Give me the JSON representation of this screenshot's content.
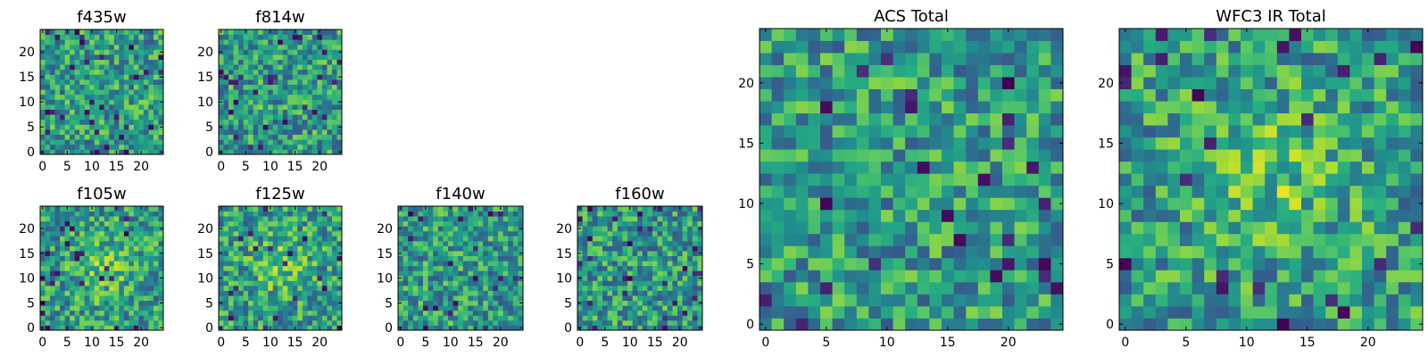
{
  "chart_data": [
    {
      "type": "heatmap",
      "title": "f435w",
      "xlabel": "",
      "ylabel": "",
      "colormap": "viridis",
      "grid_size": 25,
      "xlim": [
        -0.5,
        24.5
      ],
      "ylim": [
        -0.5,
        24.5
      ],
      "xticks": [
        0,
        5,
        10,
        15,
        20
      ],
      "yticks": [
        0,
        5,
        10,
        15,
        20
      ],
      "noise_seed": 11,
      "pattern": "uniform-noise"
    },
    {
      "type": "heatmap",
      "title": "f814w",
      "xlabel": "",
      "ylabel": "",
      "colormap": "viridis",
      "grid_size": 25,
      "xlim": [
        -0.5,
        24.5
      ],
      "ylim": [
        -0.5,
        24.5
      ],
      "xticks": [
        0,
        5,
        10,
        15,
        20
      ],
      "yticks": [
        0,
        5,
        10,
        15,
        20
      ],
      "noise_seed": 23,
      "pattern": "uniform-noise"
    },
    {
      "type": "heatmap",
      "title": "f105w",
      "xlabel": "",
      "ylabel": "",
      "colormap": "viridis",
      "grid_size": 25,
      "xlim": [
        -0.5,
        24.5
      ],
      "ylim": [
        -0.5,
        24.5
      ],
      "xticks": [
        0,
        5,
        10,
        15,
        20
      ],
      "yticks": [
        0,
        5,
        10,
        15,
        20
      ],
      "noise_seed": 37,
      "pattern": "central-bright"
    },
    {
      "type": "heatmap",
      "title": "f125w",
      "xlabel": "",
      "ylabel": "",
      "colormap": "viridis",
      "grid_size": 25,
      "xlim": [
        -0.5,
        24.5
      ],
      "ylim": [
        -0.5,
        24.5
      ],
      "xticks": [
        0,
        5,
        10,
        15,
        20
      ],
      "yticks": [
        0,
        5,
        10,
        15,
        20
      ],
      "noise_seed": 41,
      "pattern": "central-bright"
    },
    {
      "type": "heatmap",
      "title": "f140w",
      "xlabel": "",
      "ylabel": "",
      "colormap": "viridis",
      "grid_size": 25,
      "xlim": [
        -0.5,
        24.5
      ],
      "ylim": [
        -0.5,
        24.5
      ],
      "xticks": [
        0,
        5,
        10,
        15,
        20
      ],
      "yticks": [
        0,
        5,
        10,
        15,
        20
      ],
      "noise_seed": 53,
      "pattern": "uniform-noise"
    },
    {
      "type": "heatmap",
      "title": "f160w",
      "xlabel": "",
      "ylabel": "",
      "colormap": "viridis",
      "grid_size": 25,
      "xlim": [
        -0.5,
        24.5
      ],
      "ylim": [
        -0.5,
        24.5
      ],
      "xticks": [
        0,
        5,
        10,
        15,
        20
      ],
      "yticks": [
        0,
        5,
        10,
        15,
        20
      ],
      "noise_seed": 67,
      "pattern": "uniform-noise"
    },
    {
      "type": "heatmap",
      "title": "ACS Total",
      "xlabel": "",
      "ylabel": "",
      "colormap": "viridis",
      "grid_size": 25,
      "xlim": [
        -0.5,
        24.5
      ],
      "ylim": [
        -0.5,
        24.5
      ],
      "xticks": [
        0,
        5,
        10,
        15,
        20
      ],
      "yticks": [
        0,
        5,
        10,
        15,
        20
      ],
      "noise_seed": 79,
      "pattern": "uniform-noise"
    },
    {
      "type": "heatmap",
      "title": "WFC3 IR Total",
      "xlabel": "",
      "ylabel": "",
      "colormap": "viridis",
      "grid_size": 25,
      "xlim": [
        -0.5,
        24.5
      ],
      "ylim": [
        -0.5,
        24.5
      ],
      "xticks": [
        0,
        5,
        10,
        15,
        20
      ],
      "yticks": [
        0,
        5,
        10,
        15,
        20
      ],
      "noise_seed": 97,
      "pattern": "central-bright"
    }
  ]
}
